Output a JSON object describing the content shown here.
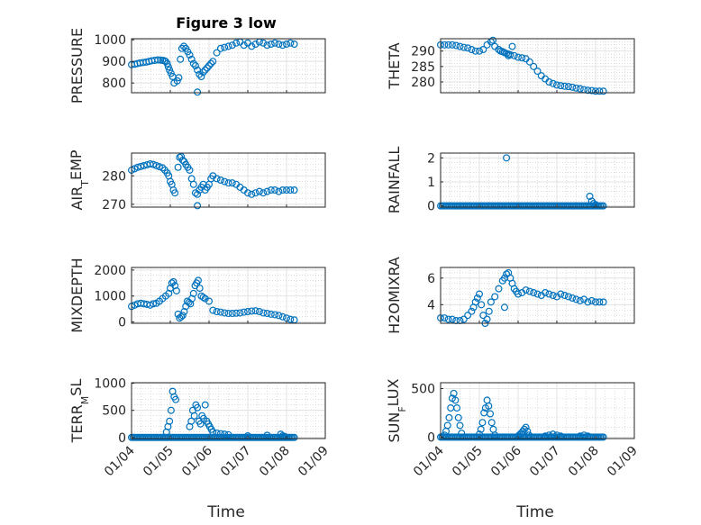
{
  "title": "Figure 3 low",
  "xlabel": "Time",
  "chart_data": [
    {
      "type": "scatter",
      "id": "pressure",
      "ylabel": {
        "base": "PRESSURE"
      },
      "ylim": [
        755,
        1005
      ],
      "yticks": [
        800,
        900,
        1000
      ],
      "xlim": [
        0,
        5
      ],
      "xticks": [
        "01/04",
        "01/05",
        "01/06",
        "01/07",
        "01/08",
        "01/09"
      ],
      "grid": true,
      "x": [
        0.0,
        0.08,
        0.15,
        0.22,
        0.3,
        0.38,
        0.45,
        0.52,
        0.6,
        0.68,
        0.75,
        0.8,
        0.85,
        0.88,
        0.92,
        0.95,
        0.98,
        1.02,
        1.06,
        1.1,
        1.18,
        1.22,
        1.26,
        1.3,
        1.35,
        1.4,
        1.45,
        1.5,
        1.55,
        1.6,
        1.65,
        1.7,
        1.75,
        1.8,
        1.85,
        1.9,
        1.95,
        2.0,
        2.05,
        2.1,
        2.2,
        2.3,
        2.4,
        2.5,
        2.6,
        2.7,
        2.8,
        2.9,
        3.0,
        3.1,
        3.2,
        3.3,
        3.4,
        3.5,
        3.6,
        3.7,
        3.8,
        3.9,
        4.0,
        4.1,
        4.2
      ],
      "y": [
        885,
        887,
        890,
        893,
        895,
        897,
        900,
        903,
        905,
        907,
        906,
        905,
        903,
        900,
        890,
        875,
        860,
        845,
        830,
        800,
        810,
        825,
        910,
        960,
        970,
        960,
        945,
        930,
        910,
        890,
        880,
        860,
        840,
        830,
        850,
        860,
        870,
        880,
        890,
        900,
        940,
        960,
        965,
        970,
        975,
        985,
        990,
        975,
        985,
        970,
        980,
        990,
        985,
        975,
        980,
        985,
        980,
        975,
        980,
        985,
        980
      ],
      "outliers": {
        "x": [
          1.7
        ],
        "y": [
          758
        ]
      }
    },
    {
      "type": "scatter",
      "id": "theta",
      "ylabel": {
        "base": "THETA"
      },
      "ylim": [
        276.5,
        294
      ],
      "yticks": [
        280,
        285,
        290
      ],
      "xlim": [
        0,
        5
      ],
      "xticks": [
        "01/04",
        "01/05",
        "01/06",
        "01/07",
        "01/08",
        "01/09"
      ],
      "grid": true,
      "x": [
        0.0,
        0.1,
        0.2,
        0.3,
        0.4,
        0.5,
        0.6,
        0.7,
        0.8,
        0.9,
        1.0,
        1.1,
        1.2,
        1.3,
        1.4,
        1.5,
        1.55,
        1.6,
        1.65,
        1.7,
        1.75,
        1.8,
        1.9,
        2.0,
        2.1,
        2.2,
        2.3,
        2.4,
        2.5,
        2.6,
        2.7,
        2.8,
        2.9,
        3.0,
        3.1,
        3.2,
        3.3,
        3.4,
        3.5,
        3.6,
        3.7,
        3.8,
        3.9,
        4.0,
        4.1,
        4.2
      ],
      "y": [
        292,
        292,
        292,
        292,
        291.8,
        291.5,
        291.2,
        291,
        290.5,
        290,
        290,
        290.5,
        292,
        293,
        291.5,
        290.5,
        290,
        289.8,
        289.5,
        289.2,
        289,
        288.8,
        288.5,
        288,
        287.8,
        287.5,
        286.5,
        285,
        283.5,
        282,
        281,
        280,
        279.5,
        279,
        278.8,
        278.6,
        278.5,
        278.3,
        278,
        277.8,
        277.5,
        277.3,
        277.2,
        277,
        277,
        277
      ],
      "outliers": {
        "x": [
          1.35,
          1.55,
          1.75,
          1.85
        ],
        "y": [
          293.5,
          290,
          288.5,
          291.5
        ]
      }
    },
    {
      "type": "scatter",
      "id": "air_temp",
      "ylabel": {
        "base": "AIR",
        "sub": "T",
        "tail": "EMP"
      },
      "ylim": [
        269,
        288
      ],
      "yticks": [
        270,
        280
      ],
      "xlim": [
        0,
        5
      ],
      "xticks": [
        "01/04",
        "01/05",
        "01/06",
        "01/07",
        "01/08",
        "01/09"
      ],
      "grid": true,
      "x": [
        0.0,
        0.08,
        0.16,
        0.24,
        0.32,
        0.4,
        0.48,
        0.56,
        0.64,
        0.72,
        0.8,
        0.86,
        0.92,
        0.96,
        1.0,
        1.04,
        1.08,
        1.12,
        1.2,
        1.24,
        1.28,
        1.32,
        1.36,
        1.4,
        1.45,
        1.5,
        1.55,
        1.6,
        1.65,
        1.7,
        1.75,
        1.8,
        1.85,
        1.9,
        1.95,
        2.0,
        2.05,
        2.1,
        2.2,
        2.3,
        2.4,
        2.5,
        2.6,
        2.7,
        2.8,
        2.9,
        3.0,
        3.1,
        3.2,
        3.3,
        3.4,
        3.5,
        3.6,
        3.7,
        3.8,
        3.9,
        4.0,
        4.1,
        4.2
      ],
      "y": [
        282,
        282.5,
        283,
        283.3,
        283.6,
        283.9,
        284.2,
        284,
        283.6,
        283.2,
        282.8,
        282,
        281,
        280,
        278,
        277,
        275,
        274,
        283,
        286.5,
        286.8,
        285.5,
        285,
        284,
        283,
        282,
        279,
        277,
        274,
        273.5,
        275,
        276,
        277,
        275,
        276,
        277,
        279,
        280,
        279,
        278.5,
        278,
        277.5,
        277.5,
        277,
        276,
        275,
        274,
        273.5,
        274,
        274.5,
        274,
        274.5,
        275,
        275,
        274.5,
        275,
        275,
        275,
        275
      ],
      "outliers": {
        "x": [
          1.7
        ],
        "y": [
          269.5
        ]
      }
    },
    {
      "type": "scatter",
      "id": "rainfall",
      "ylabel": {
        "base": "RAINFALL"
      },
      "ylim": [
        -0.05,
        2.2
      ],
      "yticks": [
        0,
        1,
        2
      ],
      "xlim": [
        0,
        5
      ],
      "xticks": [
        "01/04",
        "01/05",
        "01/06",
        "01/07",
        "01/08",
        "01/09"
      ],
      "grid": true,
      "x": [
        1.7,
        3.85,
        3.9,
        3.95,
        4.0
      ],
      "y": [
        2.0,
        0.4,
        0.2,
        0.1,
        0.05
      ],
      "zero_range": [
        0.0,
        4.2
      ]
    },
    {
      "type": "scatter",
      "id": "mixdepth",
      "ylabel": {
        "base": "MIXDEPTH"
      },
      "ylim": [
        -50,
        2100
      ],
      "yticks": [
        0,
        1000,
        2000
      ],
      "xlim": [
        0,
        5
      ],
      "xticks": [
        "01/04",
        "01/05",
        "01/06",
        "01/07",
        "01/08",
        "01/09"
      ],
      "grid": true,
      "x": [
        0.0,
        0.08,
        0.16,
        0.24,
        0.32,
        0.4,
        0.48,
        0.56,
        0.64,
        0.72,
        0.8,
        0.88,
        0.96,
        1.0,
        1.04,
        1.08,
        1.12,
        1.16,
        1.2,
        1.24,
        1.28,
        1.32,
        1.36,
        1.4,
        1.44,
        1.48,
        1.52,
        1.56,
        1.6,
        1.64,
        1.68,
        1.72,
        1.76,
        1.8,
        1.85,
        1.9,
        2.0,
        2.1,
        2.2,
        2.3,
        2.4,
        2.5,
        2.6,
        2.7,
        2.8,
        2.9,
        3.0,
        3.1,
        3.2,
        3.3,
        3.4,
        3.5,
        3.6,
        3.7,
        3.8,
        3.9,
        4.0,
        4.1,
        4.2
      ],
      "y": [
        600,
        650,
        700,
        720,
        700,
        680,
        650,
        700,
        720,
        800,
        900,
        1000,
        1100,
        1300,
        1500,
        1550,
        1400,
        1200,
        300,
        150,
        200,
        250,
        400,
        600,
        800,
        750,
        700,
        900,
        1100,
        1400,
        1500,
        1600,
        1300,
        1000,
        950,
        900,
        800,
        450,
        400,
        380,
        350,
        330,
        330,
        340,
        350,
        380,
        400,
        420,
        430,
        400,
        350,
        330,
        300,
        280,
        250,
        200,
        150,
        100,
        80
      ]
    },
    {
      "type": "scatter",
      "id": "h2omixra",
      "ylabel": {
        "base": "H2OMIXRA"
      },
      "ylim": [
        2.6,
        6.8
      ],
      "yticks": [
        4,
        6
      ],
      "xlim": [
        0,
        5
      ],
      "xticks": [
        "01/04",
        "01/05",
        "01/06",
        "01/07",
        "01/08",
        "01/09"
      ],
      "grid": true,
      "x": [
        0.0,
        0.1,
        0.2,
        0.3,
        0.4,
        0.5,
        0.6,
        0.7,
        0.8,
        0.85,
        0.9,
        0.95,
        1.0,
        1.05,
        1.1,
        1.15,
        1.2,
        1.25,
        1.3,
        1.4,
        1.5,
        1.6,
        1.65,
        1.7,
        1.75,
        1.8,
        1.85,
        1.9,
        1.95,
        2.0,
        2.1,
        2.2,
        2.3,
        2.4,
        2.5,
        2.6,
        2.7,
        2.8,
        2.9,
        3.0,
        3.1,
        3.2,
        3.3,
        3.4,
        3.5,
        3.6,
        3.7,
        3.8,
        3.9,
        4.0,
        4.1,
        4.2
      ],
      "y": [
        3.0,
        3.0,
        2.9,
        2.9,
        2.8,
        2.8,
        2.9,
        3.2,
        3.5,
        3.8,
        4.2,
        4.5,
        4.8,
        4.0,
        3.2,
        2.6,
        2.9,
        3.5,
        4.2,
        4.6,
        5.2,
        5.8,
        6.0,
        6.3,
        6.4,
        6.0,
        5.6,
        5.2,
        5.0,
        4.8,
        4.9,
        5.1,
        5.0,
        4.9,
        4.8,
        4.7,
        4.9,
        4.8,
        4.7,
        4.6,
        4.8,
        4.7,
        4.6,
        4.5,
        4.4,
        4.3,
        4.4,
        4.2,
        4.3,
        4.2,
        4.2,
        4.2
      ],
      "outliers": {
        "x": [
          1.65
        ],
        "y": [
          3.8
        ]
      }
    },
    {
      "type": "scatter",
      "id": "terr_msl",
      "ylabel": {
        "base": "TERR",
        "sub": "M",
        "tail": "SL"
      },
      "ylim": [
        -20,
        1010
      ],
      "yticks": [
        0,
        500,
        1000
      ],
      "xlim": [
        0,
        5
      ],
      "xticks": [
        "01/04",
        "01/05",
        "01/06",
        "01/07",
        "01/08",
        "01/09"
      ],
      "grid": true,
      "x": [
        0.9,
        0.94,
        0.98,
        1.02,
        1.06,
        1.1,
        1.14,
        1.5,
        1.54,
        1.58,
        1.62,
        1.66,
        1.7,
        1.74,
        1.78,
        1.82,
        1.86,
        1.9,
        1.94,
        1.98,
        2.02,
        2.06,
        2.1,
        2.2,
        2.3,
        2.4,
        2.5,
        3.0,
        3.5,
        3.85,
        3.9,
        3.95
      ],
      "y": [
        100,
        200,
        300,
        500,
        850,
        750,
        700,
        200,
        300,
        500,
        400,
        600,
        550,
        300,
        250,
        400,
        350,
        600,
        300,
        250,
        200,
        150,
        100,
        80,
        70,
        60,
        50,
        30,
        40,
        60,
        30,
        20
      ],
      "zero_range": [
        0.0,
        4.2
      ]
    },
    {
      "type": "scatter",
      "id": "sun_flux",
      "ylabel": {
        "base": "SUN",
        "sub": "F",
        "tail": "LUX"
      },
      "ylim": [
        -15,
        560
      ],
      "yticks": [
        0,
        500
      ],
      "xlim": [
        0,
        5
      ],
      "xticks": [
        "01/04",
        "01/05",
        "01/06",
        "01/07",
        "01/08",
        "01/09"
      ],
      "grid": true,
      "x": [
        0.1,
        0.14,
        0.18,
        0.22,
        0.26,
        0.3,
        0.34,
        0.38,
        0.42,
        0.46,
        0.5,
        0.54,
        1.0,
        1.04,
        1.08,
        1.12,
        1.16,
        1.2,
        1.24,
        1.28,
        1.32,
        1.36,
        1.4,
        2.0,
        2.04,
        2.08,
        2.12,
        2.16,
        2.2,
        2.24,
        2.28,
        2.7,
        2.8,
        2.9,
        3.0,
        3.1,
        3.6,
        3.7,
        3.8
      ],
      "y": [
        20,
        60,
        120,
        200,
        300,
        400,
        450,
        380,
        300,
        200,
        120,
        40,
        30,
        80,
        150,
        250,
        300,
        380,
        320,
        240,
        150,
        80,
        20,
        10,
        25,
        40,
        60,
        80,
        100,
        60,
        20,
        10,
        20,
        30,
        20,
        10,
        10,
        20,
        10
      ],
      "zero_range": [
        0.0,
        4.2
      ]
    }
  ]
}
